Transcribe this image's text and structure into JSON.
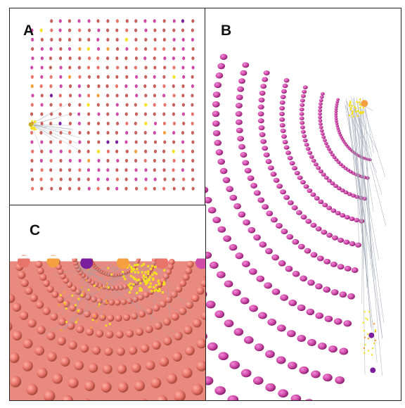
{
  "figure": {
    "panels": [
      {
        "id": "A",
        "label": "A"
      },
      {
        "id": "B",
        "label": "B"
      },
      {
        "id": "C",
        "label": "C"
      }
    ]
  },
  "colors": {
    "node_pink": "#d04aa8",
    "node_coral": "#e8746a",
    "node_salmon": "#c8605c",
    "node_yellow": "#f5e020",
    "node_orange": "#f4a040",
    "node_purple": "#7a1e9e",
    "edge_grey": "#9aa3b0",
    "border": "#222222"
  }
}
